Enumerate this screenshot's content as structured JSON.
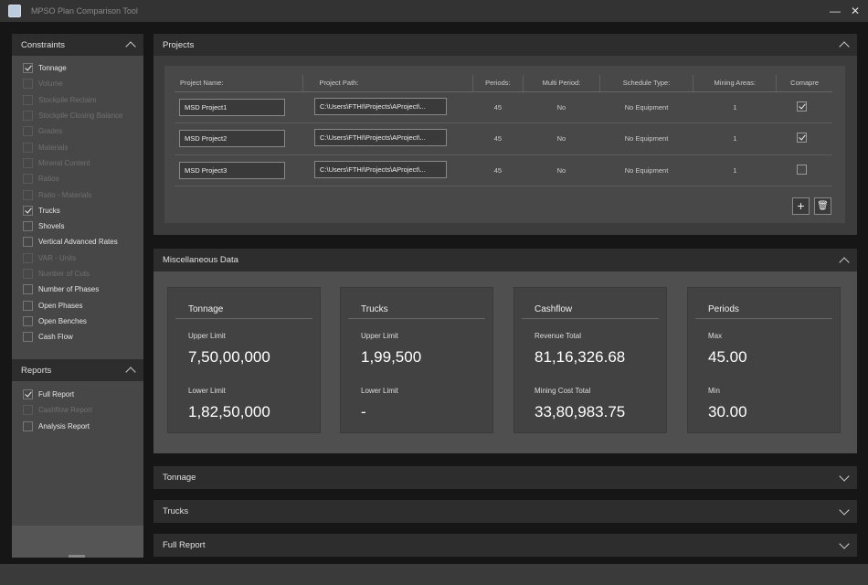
{
  "window": {
    "title": "MPSO Plan Comparison Tool",
    "minimize": "—",
    "close": "✕"
  },
  "constraints": {
    "title": "Constraints",
    "items": [
      {
        "label": "Tonnage",
        "checked": true,
        "enabled": true
      },
      {
        "label": "Volume",
        "checked": false,
        "enabled": false
      },
      {
        "label": "Stockpile Reclaim",
        "checked": false,
        "enabled": false
      },
      {
        "label": "Stockpile Closing Balance",
        "checked": false,
        "enabled": false
      },
      {
        "label": "Grades",
        "checked": false,
        "enabled": false
      },
      {
        "label": "Materials",
        "checked": false,
        "enabled": false
      },
      {
        "label": "Mineral Content",
        "checked": false,
        "enabled": false
      },
      {
        "label": "Ratios",
        "checked": false,
        "enabled": false
      },
      {
        "label": "Ratio - Materials",
        "checked": false,
        "enabled": false
      },
      {
        "label": "Trucks",
        "checked": true,
        "enabled": true
      },
      {
        "label": "Shovels",
        "checked": false,
        "enabled": true
      },
      {
        "label": "Vertical Advanced Rates",
        "checked": false,
        "enabled": true
      },
      {
        "label": "VAR - Units",
        "checked": false,
        "enabled": false
      },
      {
        "label": "Number of Cuts",
        "checked": false,
        "enabled": false
      },
      {
        "label": "Number of Phases",
        "checked": false,
        "enabled": true
      },
      {
        "label": "Open Phases",
        "checked": false,
        "enabled": true
      },
      {
        "label": "Open Benches",
        "checked": false,
        "enabled": true
      },
      {
        "label": "Cash Flow",
        "checked": false,
        "enabled": true
      }
    ]
  },
  "reports": {
    "title": "Reports",
    "items": [
      {
        "label": "Full Report",
        "checked": true,
        "enabled": true
      },
      {
        "label": "Cashflow Report",
        "checked": false,
        "enabled": false
      },
      {
        "label": "Analysis Report",
        "checked": false,
        "enabled": true
      }
    ]
  },
  "projects": {
    "title": "Projects",
    "columns": [
      "Project Name:",
      "Project Path:",
      "Periods:",
      "Multi Period:",
      "Schedule Type:",
      "Mining Areas:",
      "Comapre"
    ],
    "rows": [
      {
        "name": "MSD Project1",
        "path": "C:\\Users\\FTHI\\Projects\\AProject\\...",
        "periods": "45",
        "multi": "No",
        "schedule": "No Equipment",
        "areas": "1",
        "compare": true
      },
      {
        "name": "MSD Project2",
        "path": "C:\\Users\\FTHI\\Projects\\AProject\\...",
        "periods": "45",
        "multi": "No",
        "schedule": "No Equipment",
        "areas": "1",
        "compare": true
      },
      {
        "name": "MSD Project3",
        "path": "C:\\Users\\FTHI\\Projects\\AProject\\...",
        "periods": "45",
        "multi": "No",
        "schedule": "No Equipment",
        "areas": "1",
        "compare": false
      }
    ],
    "add": "+",
    "delete": "🗑"
  },
  "misc": {
    "title": "Miscellaneous Data",
    "cards": [
      {
        "title": "Tonnage",
        "l1": "Upper Limit",
        "v1": "7,50,00,000",
        "l2": "Lower Limit",
        "v2": "1,82,50,000"
      },
      {
        "title": "Trucks",
        "l1": "Upper Limit",
        "v1": "1,99,500",
        "l2": "Lower Limit",
        "v2": "-"
      },
      {
        "title": "Cashflow",
        "l1": "Revenue Total",
        "v1": "81,16,326.68",
        "l2": "Mining Cost Total",
        "v2": "33,80,983.75"
      },
      {
        "title": "Periods",
        "l1": "Max",
        "v1": "45.00",
        "l2": "Min",
        "v2": "30.00"
      }
    ]
  },
  "sections": [
    "Tonnage",
    "Trucks",
    "Full Report"
  ]
}
